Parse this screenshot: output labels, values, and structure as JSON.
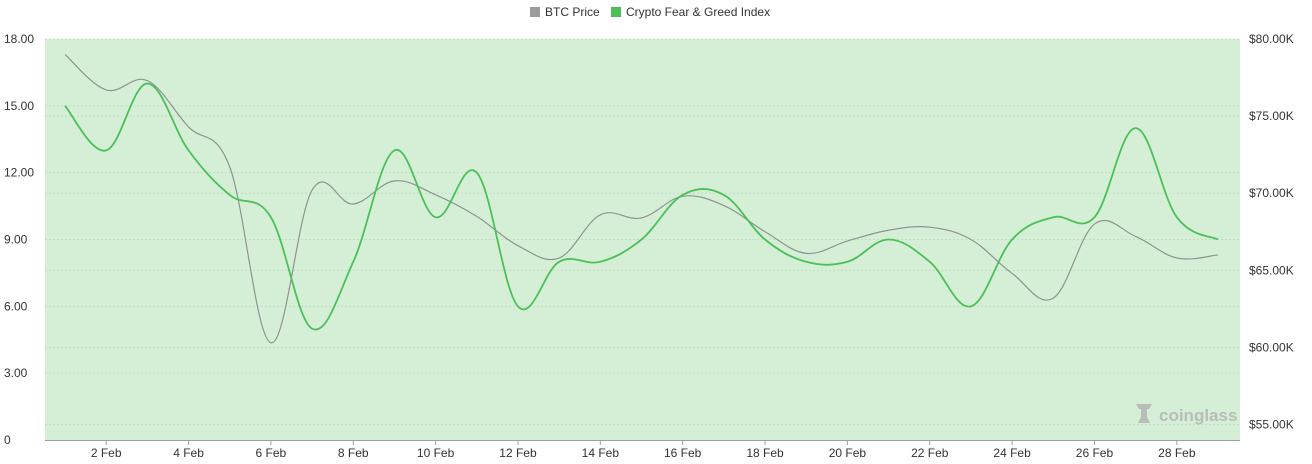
{
  "colors": {
    "plot_background": "#d5efd7",
    "btc_line": "#8f938f",
    "fear_greed_line": "#4cbf59",
    "btc_legend": "#9b9b9b",
    "fear_greed_legend": "#4cbf59",
    "grid": "#c2ddc5",
    "text": "#333333"
  },
  "watermark": {
    "text": "coinglass",
    "icon": "coinglass-logo-icon"
  },
  "chart_data": {
    "type": "line",
    "title": "",
    "xlabel": "",
    "ylabel": "",
    "grid": true,
    "legend_position": "top-center",
    "x": [
      "1 Feb",
      "2 Feb",
      "3 Feb",
      "4 Feb",
      "5 Feb",
      "6 Feb",
      "7 Feb",
      "8 Feb",
      "9 Feb",
      "10 Feb",
      "11 Feb",
      "12 Feb",
      "13 Feb",
      "14 Feb",
      "15 Feb",
      "16 Feb",
      "17 Feb",
      "18 Feb",
      "19 Feb",
      "20 Feb",
      "21 Feb",
      "22 Feb",
      "23 Feb",
      "24 Feb",
      "25 Feb",
      "26 Feb",
      "27 Feb",
      "28 Feb",
      "29 Feb"
    ],
    "x_tick_labels": [
      "2 Feb",
      "4 Feb",
      "6 Feb",
      "8 Feb",
      "10 Feb",
      "12 Feb",
      "14 Feb",
      "16 Feb",
      "18 Feb",
      "20 Feb",
      "22 Feb",
      "24 Feb",
      "26 Feb",
      "28 Feb"
    ],
    "y_left": {
      "range": [
        0,
        18
      ],
      "ticks": [
        "0",
        "3.00",
        "6.00",
        "9.00",
        "12.00",
        "15.00",
        "18.00"
      ],
      "tick_values": [
        0,
        3,
        6,
        9,
        12,
        15,
        18
      ]
    },
    "y_right": {
      "range": [
        54000,
        80000
      ],
      "ticks": [
        "$55.00K",
        "$60.00K",
        "$65.00K",
        "$70.00K",
        "$75.00K",
        "$80.00K"
      ],
      "tick_values": [
        55000,
        60000,
        65000,
        70000,
        75000,
        80000
      ]
    },
    "series": [
      {
        "name": "BTC Price",
        "axis": "right",
        "values": [
          79000,
          76700,
          77300,
          74300,
          71700,
          60300,
          70200,
          69300,
          70800,
          69900,
          68500,
          66600,
          65800,
          68600,
          68400,
          69800,
          69200,
          67500,
          66100,
          66900,
          67600,
          67800,
          67000,
          64800,
          63200,
          68000,
          67200,
          65800,
          66000
        ]
      },
      {
        "name": "Crypto Fear & Greed Index",
        "axis": "left",
        "values": [
          15,
          13,
          16,
          13,
          11,
          10,
          5,
          8,
          13,
          10,
          12,
          6,
          8,
          8,
          9,
          11,
          11,
          9,
          8,
          8,
          9,
          8,
          6,
          9,
          10,
          10,
          14,
          10,
          9
        ]
      }
    ]
  }
}
